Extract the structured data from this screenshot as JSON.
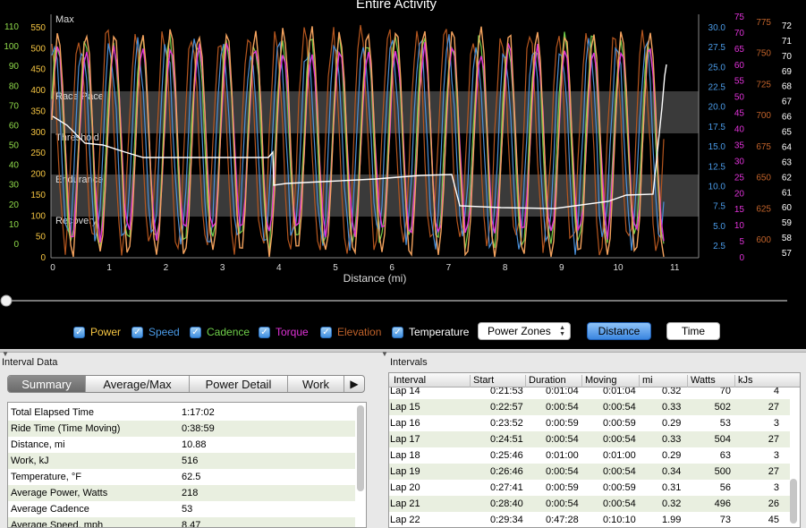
{
  "chart": {
    "title": "Entire Activity",
    "xlabel": "Distance (mi)",
    "x_ticks": [
      "0",
      "1",
      "2",
      "3",
      "4",
      "5",
      "6",
      "7",
      "8",
      "9",
      "10",
      "11"
    ],
    "power_axis_ticks": [
      "0",
      "50",
      "100",
      "150",
      "200",
      "250",
      "300",
      "350",
      "400",
      "450",
      "500",
      "550"
    ],
    "cadence_axis_ticks": [
      "0",
      "10",
      "20",
      "30",
      "40",
      "50",
      "60",
      "70",
      "80",
      "90",
      "100",
      "110"
    ],
    "speed_axis_ticks": [
      "2.5",
      "5.0",
      "7.5",
      "10.0",
      "12.5",
      "15.0",
      "17.5",
      "20.0",
      "22.5",
      "25.0",
      "27.5",
      "30.0"
    ],
    "torque_axis_ticks": [
      "0",
      "5",
      "10",
      "15",
      "20",
      "25",
      "30",
      "35",
      "40",
      "45",
      "50",
      "55",
      "60",
      "65",
      "70",
      "75"
    ],
    "elevation_axis_ticks": [
      "600",
      "625",
      "650",
      "675",
      "700",
      "725",
      "750",
      "775"
    ],
    "temperature_axis_ticks": [
      "57",
      "58",
      "59",
      "60",
      "61",
      "62",
      "63",
      "64",
      "65",
      "66",
      "67",
      "68",
      "69",
      "70",
      "71",
      "72"
    ],
    "zones": [
      "Max",
      "Race Pace",
      "Threshold",
      "Endurance",
      "Recovery"
    ],
    "colors": {
      "power": "#f5a35e",
      "speed": "#4a90d9",
      "cadence": "#6fcf4a",
      "torque": "#e032d8",
      "elevation": "#b5561e",
      "temperature": "#ffffff",
      "zone_band": "#3a3a3a"
    }
  },
  "legend": [
    {
      "label": "Power",
      "color": "#f5c542",
      "checked": true
    },
    {
      "label": "Speed",
      "color": "#4a9be8",
      "checked": true
    },
    {
      "label": "Cadence",
      "color": "#6fd04a",
      "checked": true
    },
    {
      "label": "Torque",
      "color": "#e032d8",
      "checked": true
    },
    {
      "label": "Elevation",
      "color": "#c0622a",
      "checked": true
    },
    {
      "label": "Temperature",
      "color": "#ffffff",
      "checked": true
    }
  ],
  "controls": {
    "zones_select": "Power Zones",
    "distance_button": "Distance",
    "time_button": "Time"
  },
  "interval_data": {
    "section_label": "Interval Data",
    "tabs": [
      "Summary",
      "Average/Max",
      "Power Detail",
      "Work"
    ],
    "active_tab": "Summary",
    "rows": [
      {
        "label": "Total Elapsed Time",
        "value": "1:17:02"
      },
      {
        "label": "Ride Time (Time Moving)",
        "value": "0:38:59"
      },
      {
        "label": "Distance, mi",
        "value": "10.88"
      },
      {
        "label": "Work, kJ",
        "value": "516"
      },
      {
        "label": "Temperature, °F",
        "value": "62.5"
      },
      {
        "label": "Average Power, Watts",
        "value": "218"
      },
      {
        "label": "Average Cadence",
        "value": " 53"
      },
      {
        "label": "Average Speed, mph",
        "value": "8.47"
      }
    ]
  },
  "intervals": {
    "section_label": "Intervals",
    "columns": [
      "Interval",
      "Start",
      "Duration",
      "Moving",
      "mi",
      "Watts",
      "kJs"
    ],
    "rows": [
      [
        "Lap 14",
        "0:21:53",
        "0:01:04",
        "0:01:04",
        "0.32",
        "70",
        "4"
      ],
      [
        "Lap 15",
        "0:22:57",
        "0:00:54",
        "0:00:54",
        "0.33",
        "502",
        "27"
      ],
      [
        "Lap 16",
        "0:23:52",
        "0:00:59",
        "0:00:59",
        "0.29",
        "53",
        "3"
      ],
      [
        "Lap 17",
        "0:24:51",
        "0:00:54",
        "0:00:54",
        "0.33",
        "504",
        "27"
      ],
      [
        "Lap 18",
        "0:25:46",
        "0:01:00",
        "0:01:00",
        "0.29",
        "63",
        "3"
      ],
      [
        "Lap 19",
        "0:26:46",
        "0:00:54",
        "0:00:54",
        "0.34",
        "500",
        "27"
      ],
      [
        "Lap 20",
        "0:27:41",
        "0:00:59",
        "0:00:59",
        "0.31",
        "56",
        "3"
      ],
      [
        "Lap 21",
        "0:28:40",
        "0:00:54",
        "0:00:54",
        "0.32",
        "496",
        "26"
      ],
      [
        "Lap 22",
        "0:29:34",
        "0:47:28",
        "0:10:10",
        "1.99",
        "73",
        "45"
      ]
    ]
  }
}
